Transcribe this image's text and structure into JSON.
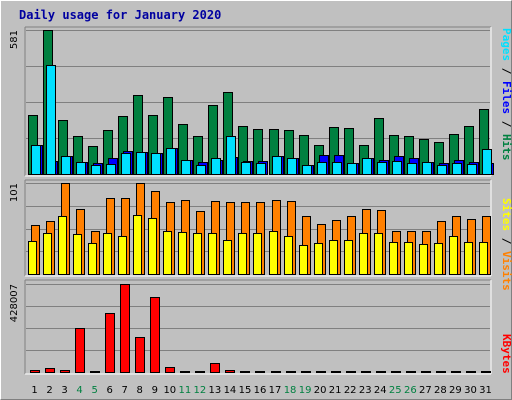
{
  "chart_data": {
    "title": "Daily usage for January 2020",
    "days": [
      "1",
      "2",
      "3",
      "4",
      "5",
      "6",
      "7",
      "8",
      "9",
      "10",
      "11",
      "12",
      "13",
      "14",
      "15",
      "16",
      "17",
      "18",
      "19",
      "20",
      "21",
      "22",
      "23",
      "24",
      "25",
      "26",
      "27",
      "28",
      "29",
      "30",
      "31"
    ],
    "weekend_days": [
      "4",
      "5",
      "11",
      "12",
      "18",
      "19",
      "25",
      "26"
    ],
    "panels": [
      {
        "type": "bar",
        "ytick": "581",
        "ymax": 581,
        "series": [
          {
            "name": "Hits",
            "color": "#008040",
            "values": [
              237,
              581,
              216,
              152,
              114,
              179,
              233,
              317,
              237,
              310,
              201,
              152,
              279,
              331,
              192,
              183,
              181,
              179,
              157,
              119,
              188,
              186,
              119,
              226,
              157,
              155,
              142,
              131,
              160,
              192,
              264
            ]
          },
          {
            "name": "Files",
            "color": "#0000ff",
            "values": [
              116,
              53,
              72,
              49,
              46,
              63,
              91,
              89,
              86,
              106,
              58,
              49,
              58,
              69,
              53,
              53,
              72,
              66,
              37,
              77,
              77,
              46,
              63,
              56,
              72,
              63,
              49,
              46,
              56,
              49,
              46
            ]
          },
          {
            "name": "Pages",
            "color": "#00e0ff",
            "values": [
              116,
              440,
              72,
              49,
              37,
              40,
              86,
              89,
              83,
              106,
              58,
              37,
              63,
              152,
              49,
              43,
              72,
              66,
              37,
              49,
              49,
              46,
              63,
              49,
              53,
              46,
              49,
              37,
              46,
              40,
              102
            ]
          }
        ]
      },
      {
        "type": "bar",
        "ytick": "101",
        "ymax": 101,
        "series": [
          {
            "name": "Visits",
            "color": "#ff8000",
            "values": [
              54,
              59,
              101,
              72,
              48,
              84,
              84,
              101,
              92,
              80,
              82,
              70,
              81,
              80,
              80,
              80,
              82,
              81,
              64,
              56,
              60,
              64,
              72,
              71,
              48,
              48,
              48,
              59,
              64,
              61,
              64
            ]
          },
          {
            "name": "Sites",
            "color": "#ffff00",
            "values": [
              37,
              45,
              64,
              44,
              34,
              46,
              42,
              66,
              62,
              48,
              47,
              45,
              46,
              38,
              45,
              45,
              48,
              42,
              32,
              34,
              38,
              38,
              45,
              45,
              36,
              36,
              33,
              34,
              42,
              35,
              35
            ]
          }
        ]
      },
      {
        "type": "bar",
        "ytick": "428007",
        "ymax": 428007,
        "series": [
          {
            "name": "KBytes",
            "color": "#ff0000",
            "values": [
              8000,
              18000,
              11000,
              213000,
              6000,
              285000,
              428007,
              172000,
              364000,
              22000,
              6000,
              6000,
              45000,
              8000,
              6000,
              6000,
              6000,
              6000,
              6000,
              6000,
              6000,
              6000,
              6000,
              6000,
              6000,
              6000,
              6000,
              6000,
              6000,
              6000,
              6000
            ]
          }
        ]
      }
    ],
    "side_labels": {
      "pages": "Pages",
      "files": "Files",
      "hits": "Hits",
      "sites": "Sites",
      "visits": "Visits",
      "kbytes": "KBytes",
      "separator": " / "
    }
  },
  "colors": {
    "panel_bg": "#c0c0c0",
    "grid": "#808080",
    "title": "#0000a0",
    "weekend_day": "#008040",
    "day": "#000000"
  }
}
